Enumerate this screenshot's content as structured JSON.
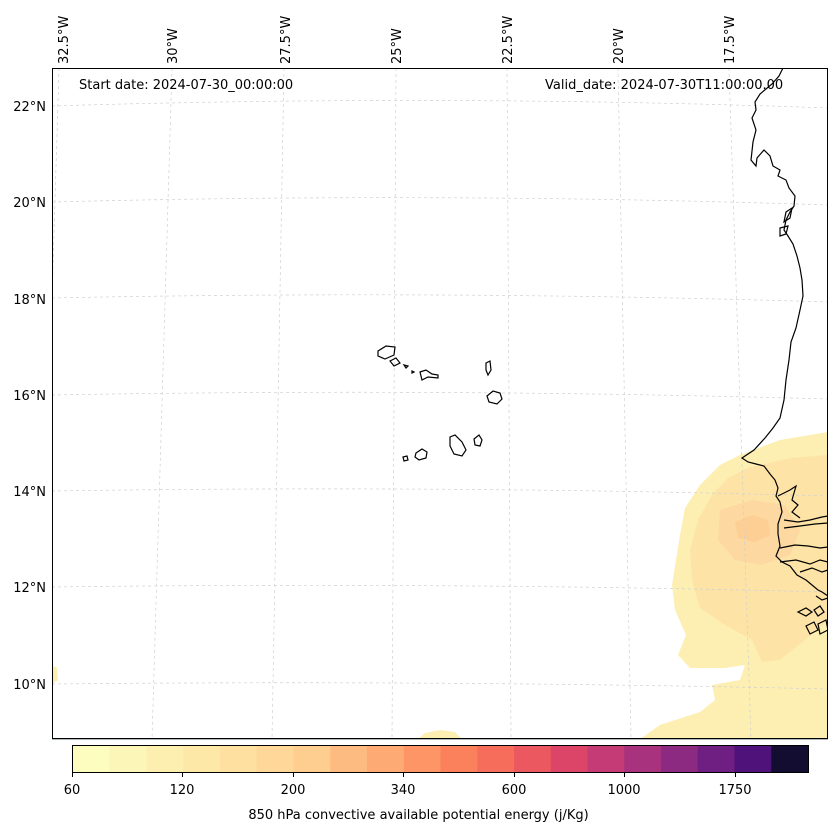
{
  "header": {
    "start_date": "Start date: 2024-07-30_00:00:00",
    "valid_date": "Valid_date: 2024-07-30T11:00:00.00"
  },
  "lon_labels": [
    "32.5°W",
    "30°W",
    "27.5°W",
    "25°W",
    "22.5°W",
    "20°W",
    "17.5°W"
  ],
  "lat_labels": [
    "22°N",
    "20°N",
    "18°N",
    "16°N",
    "14°N",
    "12°N",
    "10°N"
  ],
  "colorbar": {
    "label": "850 hPa convective available potential energy (j/Kg)",
    "tick_labels": [
      "60",
      "120",
      "200",
      "340",
      "600",
      "1000",
      "1750"
    ],
    "colors": [
      "#fcfdbf",
      "#fcf6b8",
      "#fcefb0",
      "#fde8a8",
      "#fee0a0",
      "#fed799",
      "#fecd90",
      "#febb81",
      "#feaa74",
      "#fd9567",
      "#fb815d",
      "#f66e5b",
      "#ec5860",
      "#dc4468",
      "#c43b75",
      "#a8327d",
      "#8c2981",
      "#6f1f81",
      "#4f127b",
      "#120d31"
    ]
  },
  "colors": {
    "cape_low": "#fcefb0",
    "cape_mid": "#fde0a3",
    "cape_peak": "#fdd293",
    "coastline": "#000000",
    "gridline": "#cccccc"
  }
}
